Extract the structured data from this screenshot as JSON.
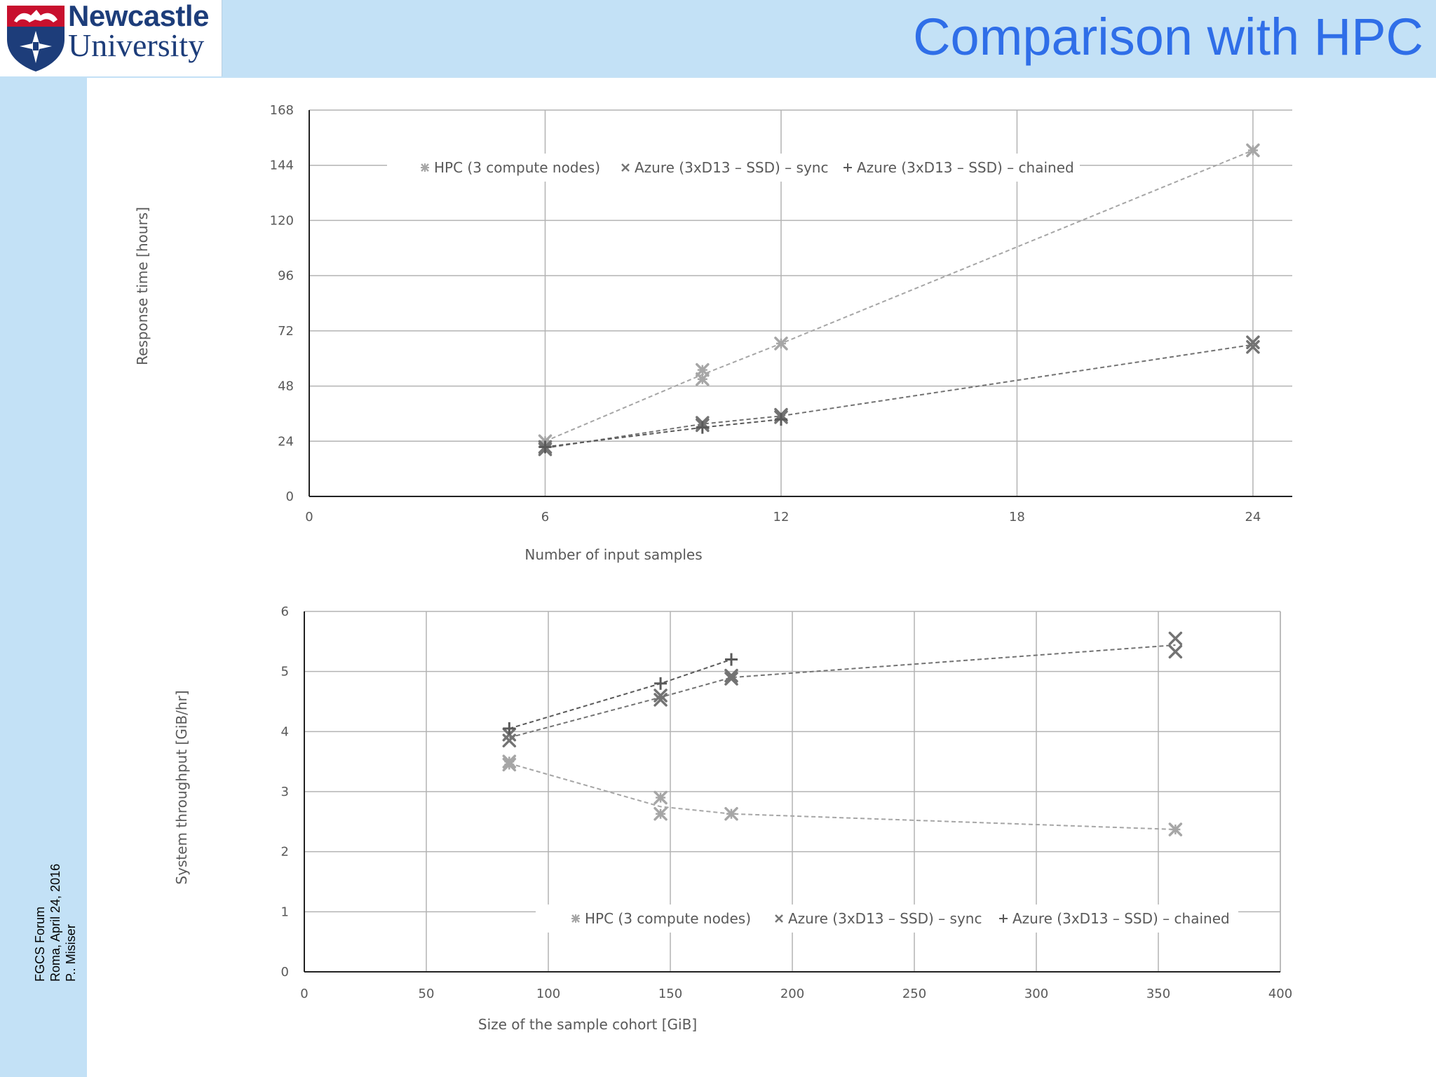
{
  "header": {
    "logo_line1": "Newcastle",
    "logo_line2": "University",
    "title": "Comparison with HPC"
  },
  "footer": {
    "line1": "FGCS Forum",
    "line2": "Roma, April 24, 2016",
    "line3": "P.. Misiser"
  },
  "colors": {
    "header_bg": "#c3e1f6",
    "title": "#2f6ee8",
    "hpc": "#a6a6a6",
    "sync": "#737373",
    "chained": "#595959"
  },
  "chart_data": [
    {
      "type": "scatter",
      "title": "",
      "xlabel": "Number of input samples",
      "ylabel": "Response time [hours]",
      "xlim": [
        0,
        25
      ],
      "ylim": [
        0,
        168
      ],
      "xticks": [
        0,
        6,
        12,
        18,
        24
      ],
      "yticks": [
        0,
        24,
        48,
        72,
        96,
        120,
        144,
        168
      ],
      "grid": true,
      "legend": "top",
      "series": [
        {
          "name": "HPC (3 compute nodes)",
          "marker": "star",
          "color": "#a6a6a6",
          "points": [
            [
              6,
              24
            ],
            [
              10,
              55
            ],
            [
              10,
              51
            ],
            [
              12,
              66.5
            ],
            [
              24,
              150.5
            ]
          ],
          "line": [
            [
              6,
              24
            ],
            [
              10,
              53
            ],
            [
              12,
              66.5
            ],
            [
              24,
              150.5
            ]
          ]
        },
        {
          "name": "Azure (3xD13 – SSD) – sync",
          "marker": "x",
          "color": "#737373",
          "points": [
            [
              6,
              21.5
            ],
            [
              6,
              20.5
            ],
            [
              10,
              32
            ],
            [
              10,
              31
            ],
            [
              12,
              35.5
            ],
            [
              12,
              34.5
            ],
            [
              24,
              67
            ],
            [
              24,
              65
            ]
          ],
          "line": [
            [
              6,
              21
            ],
            [
              10,
              31.5
            ],
            [
              12,
              35
            ],
            [
              24,
              66
            ]
          ]
        },
        {
          "name": "Azure (3xD13 – SSD) – chained",
          "marker": "plus",
          "color": "#595959",
          "points": [
            [
              6,
              21.5
            ],
            [
              10,
              30
            ],
            [
              12,
              33.5
            ]
          ],
          "line": [
            [
              6,
              21.5
            ],
            [
              10,
              30
            ],
            [
              12,
              33.5
            ]
          ]
        }
      ]
    },
    {
      "type": "scatter",
      "title": "",
      "xlabel": "Size of the sample cohort [GiB]",
      "ylabel": "System throughput [GiB/hr]",
      "xlim": [
        0,
        400
      ],
      "ylim": [
        0,
        6
      ],
      "xticks": [
        0,
        50,
        100,
        150,
        200,
        250,
        300,
        350,
        400
      ],
      "yticks": [
        0,
        1,
        2,
        3,
        4,
        5,
        6
      ],
      "grid": true,
      "legend": "bottom",
      "series": [
        {
          "name": "HPC (3 compute nodes)",
          "marker": "star",
          "color": "#a6a6a6",
          "points": [
            [
              84,
              3.5
            ],
            [
              84,
              3.45
            ],
            [
              146,
              2.9
            ],
            [
              146,
              2.63
            ],
            [
              175,
              2.63
            ],
            [
              357,
              2.37
            ]
          ],
          "line": [
            [
              84,
              3.47
            ],
            [
              146,
              2.75
            ],
            [
              175,
              2.63
            ],
            [
              357,
              2.37
            ]
          ]
        },
        {
          "name": "Azure (3xD13 – SSD) – sync",
          "marker": "x",
          "color": "#737373",
          "points": [
            [
              84,
              3.95
            ],
            [
              84,
              3.85
            ],
            [
              146,
              4.6
            ],
            [
              146,
              4.53
            ],
            [
              175,
              4.93
            ],
            [
              175,
              4.88
            ],
            [
              357,
              5.55
            ],
            [
              357,
              5.33
            ]
          ],
          "line": [
            [
              84,
              3.9
            ],
            [
              146,
              4.57
            ],
            [
              175,
              4.9
            ],
            [
              357,
              5.44
            ]
          ]
        },
        {
          "name": "Azure (3xD13 – SSD) – chained",
          "marker": "plus",
          "color": "#595959",
          "points": [
            [
              84,
              4.05
            ],
            [
              146,
              4.8
            ],
            [
              175,
              5.2
            ]
          ],
          "line": [
            [
              84,
              4.05
            ],
            [
              146,
              4.8
            ],
            [
              175,
              5.2
            ]
          ]
        }
      ]
    }
  ]
}
